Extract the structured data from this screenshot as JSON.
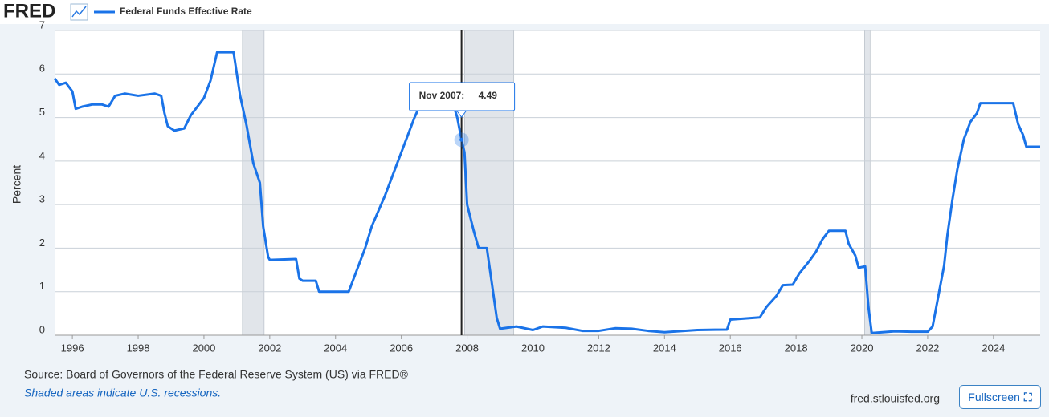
{
  "logo": "FRED",
  "chart_data": {
    "type": "line",
    "y_label": "Percent",
    "x": [
      1995.46,
      1995.6,
      1995.8,
      1996.0,
      1996.1,
      1996.3,
      1996.6,
      1996.9,
      1997.1,
      1997.3,
      1997.6,
      1998.0,
      1998.5,
      1998.7,
      1998.8,
      1998.9,
      1999.1,
      1999.4,
      1999.6,
      1999.8,
      2000.0,
      2000.2,
      2000.4,
      2000.9,
      2001.0,
      2001.1,
      2001.3,
      2001.5,
      2001.7,
      2001.8,
      2001.95,
      2002.0,
      2002.8,
      2002.9,
      2003.0,
      2003.4,
      2003.5,
      2004.0,
      2004.4,
      2004.6,
      2004.9,
      2005.1,
      2005.5,
      2005.8,
      2006.1,
      2006.4,
      2006.55,
      2007.6,
      2007.7,
      2007.83,
      2007.92,
      2008.0,
      2008.2,
      2008.35,
      2008.6,
      2008.75,
      2008.9,
      2009.0,
      2009.5,
      2010.0,
      2010.3,
      2011.0,
      2011.5,
      2012.0,
      2012.5,
      2013.0,
      2013.5,
      2014.0,
      2015.0,
      2015.9,
      2016.0,
      2016.9,
      2017.1,
      2017.4,
      2017.6,
      2017.9,
      2018.1,
      2018.4,
      2018.6,
      2018.8,
      2019.0,
      2019.5,
      2019.6,
      2019.8,
      2019.9,
      2020.1,
      2020.2,
      2020.3,
      2021.0,
      2021.5,
      2022.0,
      2022.15,
      2022.3,
      2022.5,
      2022.6,
      2022.75,
      2022.9,
      2023.1,
      2023.3,
      2023.5,
      2023.6,
      2024.6,
      2024.75,
      2024.9,
      2025.0,
      2025.42
    ],
    "series": [
      {
        "name": "Federal Funds Effective Rate",
        "color": "#1a73e8",
        "values": [
          5.9,
          5.75,
          5.8,
          5.6,
          5.2,
          5.25,
          5.3,
          5.3,
          5.25,
          5.5,
          5.55,
          5.5,
          5.55,
          5.5,
          5.1,
          4.8,
          4.7,
          4.75,
          5.05,
          5.25,
          5.45,
          5.85,
          6.5,
          6.5,
          6.0,
          5.5,
          4.8,
          3.95,
          3.5,
          2.5,
          1.8,
          1.73,
          1.75,
          1.3,
          1.25,
          1.25,
          1.0,
          1.0,
          1.0,
          1.4,
          2.0,
          2.5,
          3.2,
          3.8,
          4.4,
          5.0,
          5.25,
          5.25,
          5.0,
          4.49,
          4.2,
          3.0,
          2.4,
          2.0,
          2.0,
          1.2,
          0.4,
          0.15,
          0.2,
          0.12,
          0.2,
          0.17,
          0.1,
          0.1,
          0.16,
          0.15,
          0.1,
          0.07,
          0.12,
          0.13,
          0.36,
          0.41,
          0.65,
          0.9,
          1.15,
          1.16,
          1.42,
          1.7,
          1.91,
          2.2,
          2.4,
          2.4,
          2.1,
          1.83,
          1.55,
          1.58,
          0.65,
          0.05,
          0.09,
          0.08,
          0.08,
          0.2,
          0.8,
          1.6,
          2.3,
          3.1,
          3.8,
          4.5,
          4.9,
          5.1,
          5.33,
          5.33,
          4.85,
          4.6,
          4.33,
          4.33
        ]
      }
    ],
    "recessions": [
      [
        2001.17,
        2001.83
      ],
      [
        2007.92,
        2009.42
      ],
      [
        2020.08,
        2020.25
      ]
    ],
    "xlim": [
      1995.46,
      2025.42
    ],
    "xticks": [
      1996,
      1998,
      2000,
      2002,
      2004,
      2006,
      2008,
      2010,
      2012,
      2014,
      2016,
      2018,
      2020,
      2022,
      2024
    ],
    "ylim": [
      0,
      7
    ],
    "yticks": [
      0,
      1,
      2,
      3,
      4,
      5,
      6,
      7
    ],
    "grid": true,
    "tooltip": {
      "label": "Nov 2007:",
      "x": 2007.83,
      "value": 4.49
    }
  },
  "source": "Source: Board of Governors of the Federal Reserve System (US) via FRED®",
  "note": "Shaded areas indicate U.S. recessions.",
  "site": "fred.stlouisfed.org",
  "button": "Fullscreen"
}
